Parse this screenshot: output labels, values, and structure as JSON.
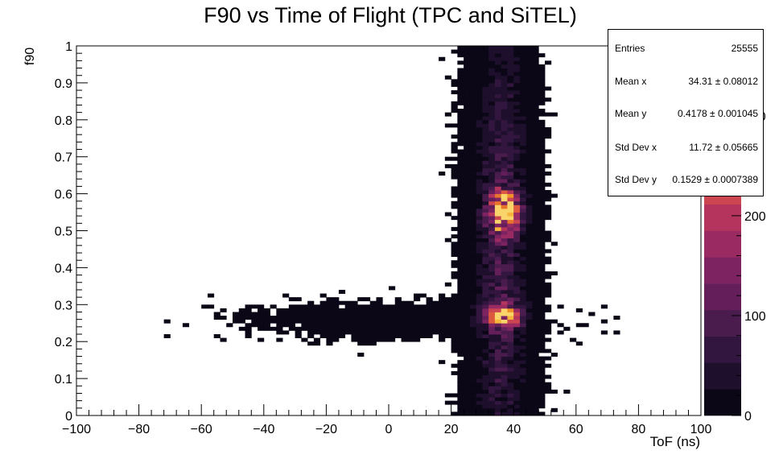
{
  "chart_data": {
    "type": "heatmap",
    "title": "F90 vs Time of Flight (TPC and SiTEL)",
    "xlabel": "ToF (ns)",
    "ylabel": "f90",
    "xlim": [
      -100,
      100
    ],
    "ylim": [
      0,
      1
    ],
    "x_ticks": [
      "−100",
      "−80",
      "−60",
      "−40",
      "−20",
      "0",
      "20",
      "40",
      "60",
      "80",
      "100"
    ],
    "y_ticks": [
      "0",
      "0.1",
      "0.2",
      "0.3",
      "0.4",
      "0.5",
      "0.6",
      "0.7",
      "0.8",
      "0.9",
      "1"
    ],
    "colorbar": {
      "range": [
        0,
        370
      ],
      "ticks": [
        "0",
        "100",
        "200",
        "300"
      ],
      "palette": [
        "#0b0716",
        "#1e0f2c",
        "#33163f",
        "#4a1c4e",
        "#641f5a",
        "#7e2361",
        "#992a62",
        "#b4345d",
        "#cc4651",
        "#dd5a3e",
        "#e8742b",
        "#f09226",
        "#f6b43b",
        "#f9d46a"
      ]
    },
    "grid": false,
    "stats": {
      "entries_label": "Entries",
      "entries": "25555",
      "mean_x_label": "Mean x",
      "mean_x": "34.31 ± 0.08012",
      "mean_y_label": "Mean y",
      "mean_y": "0.4178 ± 0.001045",
      "std_x_label": "Std Dev x",
      "std_x": "11.72 ± 0.05665",
      "std_y_label": "Std Dev y",
      "std_y": "0.1529 ± 0.0007389"
    },
    "clusters": [
      {
        "x": 37,
        "y": 0.55,
        "peak": 370,
        "sx": 3.0,
        "sy": 0.035
      },
      {
        "x": 37,
        "y": 0.27,
        "peak": 280,
        "sx": 3.5,
        "sy": 0.02
      },
      {
        "x": 36,
        "y": 0.45,
        "peak": 80,
        "sx": 5.0,
        "sy": 0.4
      },
      {
        "x": 0,
        "y": 0.26,
        "peak": 5,
        "sx": 25,
        "sy": 0.03
      }
    ]
  }
}
